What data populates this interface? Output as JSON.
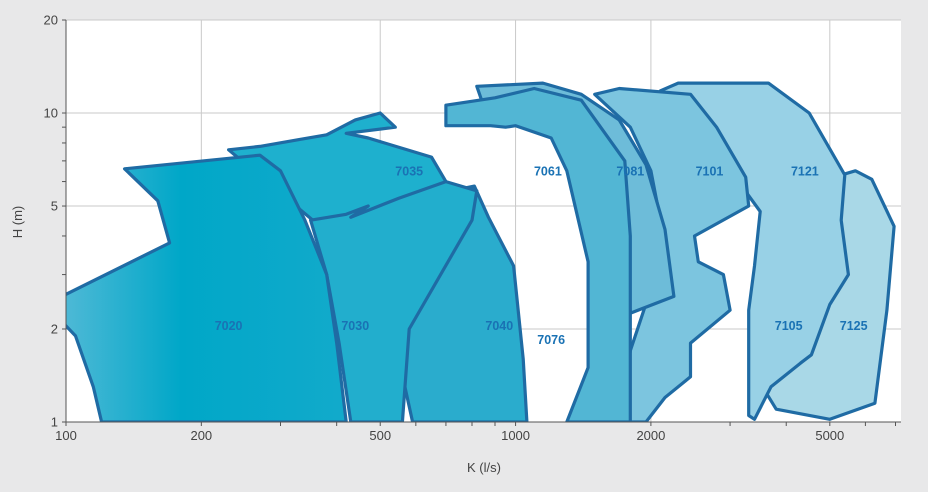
{
  "chart_data": {
    "type": "area",
    "title": "",
    "xlabel": "K (l/s)",
    "ylabel": "H (m)",
    "xscale": "log",
    "yscale": "log",
    "xlim": [
      100,
      7200
    ],
    "ylim": [
      1,
      20
    ],
    "x_ticks": [
      100,
      200,
      500,
      1000,
      2000,
      5000
    ],
    "y_ticks": [
      1,
      2,
      5,
      10,
      20
    ],
    "grid": true,
    "colors": {
      "page_background": "#e8e8e9",
      "plot_background": "#ffffff",
      "grid": "#c9c9c9",
      "outline": "#1f6ba4",
      "label": "#1a72b4"
    },
    "series": [
      {
        "name": "7125",
        "fill": "#a9d8e7",
        "label_at": [
          5650,
          2.05
        ],
        "outline": [
          [
            3800,
            1.1
          ],
          [
            5000,
            1.02
          ],
          [
            6300,
            1.15
          ],
          [
            6700,
            2.3
          ],
          [
            6950,
            4.3
          ],
          [
            6200,
            6.1
          ],
          [
            5700,
            6.5
          ],
          [
            5100,
            6.2
          ],
          [
            5300,
            3.1
          ],
          [
            4500,
            2.0
          ],
          [
            3900,
            1.6
          ],
          [
            3600,
            1.25
          ]
        ]
      },
      {
        "name": "7121",
        "fill": "#98d1e6",
        "label_at": [
          4400,
          6.5
        ],
        "outline": [
          [
            3300,
            1.05
          ],
          [
            3400,
            1.02
          ],
          [
            3700,
            1.3
          ],
          [
            4300,
            1.55
          ],
          [
            4550,
            1.65
          ],
          [
            5000,
            2.4
          ],
          [
            5500,
            3.0
          ],
          [
            5300,
            4.5
          ],
          [
            5400,
            6.3
          ],
          [
            4500,
            10.0
          ],
          [
            3650,
            12.5
          ],
          [
            2300,
            12.5
          ],
          [
            2100,
            11.8
          ],
          [
            2800,
            7.5
          ],
          [
            3500,
            4.8
          ],
          [
            3400,
            3.2
          ],
          [
            3300,
            2.3
          ]
        ]
      },
      {
        "name": "7105",
        "fill": "#8bcbe3",
        "label_at": [
          4050,
          2.05
        ]
      },
      {
        "name": "7101",
        "fill": "#7cc5df",
        "label_at": [
          2700,
          6.5
        ],
        "outline": [
          [
            1950,
            1.0
          ],
          [
            2150,
            1.2
          ],
          [
            2450,
            1.4
          ],
          [
            2450,
            1.8
          ],
          [
            3000,
            2.3
          ],
          [
            2900,
            3.0
          ],
          [
            2550,
            3.3
          ],
          [
            2500,
            4.0
          ],
          [
            3300,
            5.0
          ],
          [
            3250,
            6.2
          ],
          [
            2800,
            9.0
          ],
          [
            2450,
            11.5
          ],
          [
            1700,
            12.0
          ],
          [
            1500,
            11.5
          ],
          [
            1800,
            9.0
          ],
          [
            2000,
            6.5
          ],
          [
            2100,
            4.5
          ],
          [
            2050,
            3.0
          ],
          [
            1800,
            1.7
          ],
          [
            1700,
            1.0
          ]
        ]
      },
      {
        "name": "7081",
        "fill": "#6dbcd9",
        "label_at": [
          1800,
          6.5
        ],
        "outline": [
          [
            1800,
            2.25
          ],
          [
            2250,
            2.55
          ],
          [
            2150,
            4.2
          ],
          [
            1950,
            6.8
          ],
          [
            1700,
            9.5
          ],
          [
            1400,
            11.5
          ],
          [
            1150,
            12.5
          ],
          [
            820,
            12.2
          ],
          [
            850,
            10.5
          ],
          [
            1300,
            8.6
          ],
          [
            1550,
            6.5
          ],
          [
            1750,
            4.0
          ]
        ]
      },
      {
        "name": "7076",
        "fill": "#44b3d2",
        "label_at": [
          1200,
          1.85
        ]
      },
      {
        "name": "7061",
        "fill": "#52b6d4",
        "label_at": [
          1180,
          6.5
        ],
        "outline": [
          [
            1300,
            1.0
          ],
          [
            1450,
            1.5
          ],
          [
            1450,
            3.3
          ],
          [
            1300,
            6.5
          ],
          [
            1200,
            8.3
          ],
          [
            1000,
            9.1
          ],
          [
            950,
            9.0
          ],
          [
            880,
            9.1
          ],
          [
            700,
            9.1
          ],
          [
            700,
            10.6
          ],
          [
            900,
            11.2
          ],
          [
            1100,
            12.0
          ],
          [
            1400,
            11.0
          ],
          [
            1750,
            7.0
          ],
          [
            1800,
            4.0
          ],
          [
            1800,
            1.0
          ]
        ]
      },
      {
        "name": "7040",
        "fill": "#2aaccd",
        "label_at": [
          920,
          2.05
        ],
        "outline": [
          [
            590,
            1.0
          ],
          [
            550,
            1.6
          ],
          [
            460,
            2.6
          ],
          [
            410,
            4.2
          ],
          [
            560,
            5.2
          ],
          [
            810,
            5.8
          ],
          [
            870,
            4.6
          ],
          [
            990,
            3.2
          ],
          [
            1040,
            1.6
          ],
          [
            1060,
            1.0
          ]
        ]
      },
      {
        "name": "7035",
        "fill": "#1eb0ce",
        "label_at": [
          580,
          6.5
        ],
        "outline": [
          [
            390,
            4.0
          ],
          [
            700,
            6.0
          ],
          [
            650,
            7.2
          ],
          [
            470,
            8.3
          ],
          [
            420,
            8.6
          ],
          [
            540,
            9.0
          ],
          [
            500,
            10.0
          ],
          [
            440,
            9.5
          ],
          [
            380,
            8.5
          ],
          [
            330,
            8.2
          ],
          [
            270,
            7.8
          ],
          [
            230,
            7.6
          ]
        ]
      },
      {
        "name": "7030",
        "fill": "#22aecd",
        "label_at": [
          440,
          2.05
        ],
        "outline": [
          [
            430,
            1.0
          ],
          [
            405,
            1.8
          ],
          [
            380,
            3.0
          ],
          [
            350,
            4.5
          ],
          [
            420,
            4.7
          ],
          [
            470,
            5.0
          ],
          [
            430,
            4.6
          ],
          [
            550,
            5.3
          ],
          [
            700,
            6.0
          ],
          [
            820,
            5.6
          ],
          [
            800,
            4.5
          ],
          [
            580,
            2.0
          ],
          [
            560,
            1.0
          ]
        ]
      },
      {
        "name": "7020",
        "fill": "#10a8c8",
        "label_at": [
          230,
          2.05
        ],
        "outline": [
          [
            120,
            1.0
          ],
          [
            115,
            1.3
          ],
          [
            105,
            1.9
          ],
          [
            90,
            2.4
          ],
          [
            170,
            3.8
          ],
          [
            160,
            5.2
          ],
          [
            135,
            6.6
          ],
          [
            270,
            7.3
          ],
          [
            300,
            6.5
          ],
          [
            340,
            4.5
          ],
          [
            380,
            3.0
          ],
          [
            400,
            1.8
          ],
          [
            420,
            1.0
          ]
        ]
      }
    ]
  }
}
